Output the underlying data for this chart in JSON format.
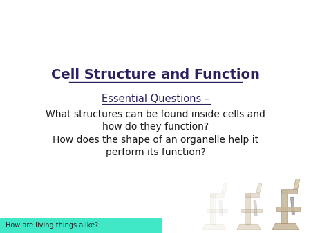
{
  "background_color": "#ffffff",
  "title": "Cell Structure and Function",
  "title_color": "#2e2060",
  "title_fontsize": 14,
  "subtitle": "Essential Questions –",
  "subtitle_color": "#2e2060",
  "subtitle_fontsize": 10.5,
  "q1": "What structures can be found inside cells and\nhow do they function?",
  "q1_color": "#1a1a1a",
  "q1_fontsize": 10,
  "q2": "How does the shape of an organelle help it\nperform its function?",
  "q2_color": "#1a1a1a",
  "q2_fontsize": 10,
  "footer_text": "How are living things alike?",
  "footer_bg": "#40e8c8",
  "footer_text_color": "#222222",
  "footer_fontsize": 7
}
